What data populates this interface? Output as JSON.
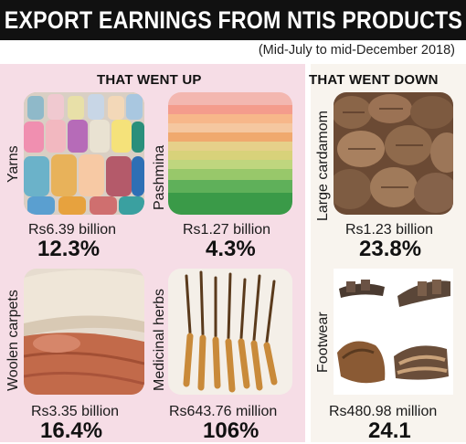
{
  "header": {
    "title": "EXPORT EARNINGS FROM NTIS PRODUCTS",
    "subtitle": "(Mid-July to mid-December 2018)"
  },
  "sections": {
    "up_label": "THAT WENT UP",
    "down_label": "THAT WENT DOWN"
  },
  "products": [
    {
      "name": "Yarns",
      "value": "Rs6.39 billion",
      "change": "12.3%"
    },
    {
      "name": "Pashmina",
      "value": "Rs1.27 billion",
      "change": "4.3%"
    },
    {
      "name": "Large cardamom",
      "value": "Rs1.23 billion",
      "change": "23.8%"
    },
    {
      "name": "Woolen carpets",
      "value": "Rs3.35 billion",
      "change": "16.4%"
    },
    {
      "name": "Medicinal herbs",
      "value": "Rs643.76 million",
      "change": "106%"
    },
    {
      "name": "Footwear",
      "value": "Rs480.98 million",
      "change": "24.1"
    }
  ],
  "colors": {
    "up_panel": "#f6dde6",
    "down_panel": "#f8f4ee",
    "title_bar": "#111111"
  }
}
